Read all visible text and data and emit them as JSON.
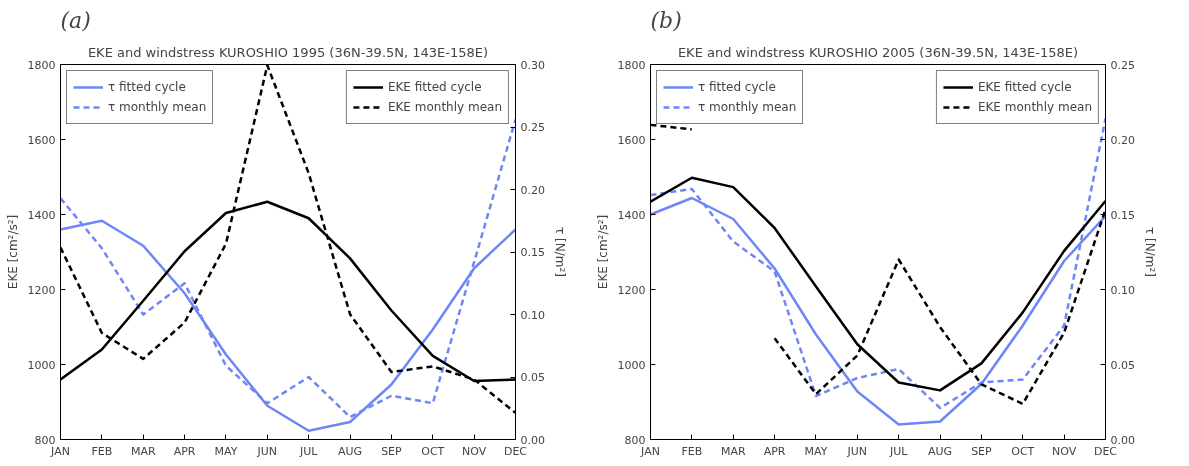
{
  "chart_data": [
    {
      "type": "line",
      "title": "EKE and windstress KUROSHIO 1995 (36N-39.5N, 143E-158E)",
      "annotations": [
        "(a)"
      ],
      "ylabel": "EKE [cm²/s²]",
      "y2label": "τ [N/m²]",
      "categories": [
        "JAN",
        "FEB",
        "MAR",
        "APR",
        "MAY",
        "JUN",
        "JUL",
        "AUG",
        "SEP",
        "OCT",
        "NOV",
        "DEC"
      ],
      "ylim": [
        800,
        1800
      ],
      "yticks": [
        800,
        1000,
        1200,
        1400,
        1600,
        1800
      ],
      "y2lim": [
        0,
        0.3
      ],
      "y2ticks": [
        {
          "value": 0,
          "label": "0.00"
        },
        {
          "value": 0.05,
          "label": "0.05"
        },
        {
          "value": 0.1,
          "label": "0.10"
        },
        {
          "value": 0.15,
          "label": "0.15"
        },
        {
          "value": 0.2,
          "label": "0.20"
        },
        {
          "value": 0.25,
          "label": "0.25"
        },
        {
          "value": 0.3,
          "label": "0.30"
        }
      ],
      "grid": false,
      "legend": "top",
      "marker": "none",
      "series": [
        {
          "name": "τ fitted cycle",
          "color": "#6f86f7",
          "axis": "y2",
          "line_style": "solid",
          "values": [
            0.168,
            0.175,
            0.155,
            0.117,
            0.068,
            0.027,
            0.007,
            0.014,
            0.044,
            0.088,
            0.137,
            0.168
          ]
        },
        {
          "name": "τ monthly mean",
          "color": "#6f86f7",
          "axis": "y2",
          "line_style": "dashed",
          "values": [
            0.193,
            0.153,
            0.1,
            0.125,
            0.059,
            0.029,
            0.05,
            0.018,
            0.035,
            0.029,
            0.142,
            0.256
          ]
        },
        {
          "name": "EKE fitted cycle",
          "color": "#000000",
          "line_style": "solid",
          "values": [
            960,
            1040,
            1170,
            1302,
            1404,
            1434,
            1390,
            1283,
            1144,
            1023,
            956,
            960
          ]
        },
        {
          "name": "EKE monthly mean",
          "color": "#000000",
          "line_style": "dashed",
          "values": [
            1312,
            1084,
            1015,
            1112,
            1322,
            1798,
            1510,
            1134,
            980,
            995,
            960,
            871
          ]
        }
      ]
    },
    {
      "type": "line",
      "title": "EKE and windstress KUROSHIO 2005 (36N-39.5N, 143E-158E)",
      "annotations": [
        "(b)"
      ],
      "ylabel": "EKE [cm²/s²]",
      "y2label": "τ [N/m²]",
      "categories": [
        "JAN",
        "FEB",
        "MAR",
        "APR",
        "MAY",
        "JUN",
        "JUL",
        "AUG",
        "SEP",
        "OCT",
        "NOV",
        "DEC"
      ],
      "ylim": [
        800,
        1800
      ],
      "yticks": [
        800,
        1000,
        1200,
        1400,
        1600,
        1800
      ],
      "y2lim": [
        0,
        0.25
      ],
      "y2ticks": [
        {
          "value": 0,
          "label": "0.00"
        },
        {
          "value": 0.05,
          "label": "0.05"
        },
        {
          "value": 0.1,
          "label": "0.10"
        },
        {
          "value": 0.15,
          "label": "0.15"
        },
        {
          "value": 0.2,
          "label": "0.20"
        },
        {
          "value": 0.25,
          "label": "0.25"
        }
      ],
      "grid": false,
      "legend": "top",
      "marker": "none",
      "series": [
        {
          "name": "τ fitted cycle",
          "color": "#6f86f7",
          "axis": "y2",
          "line_style": "solid",
          "values": [
            0.15,
            0.161,
            0.147,
            0.114,
            0.07,
            0.032,
            0.01,
            0.012,
            0.037,
            0.076,
            0.119,
            0.149
          ]
        },
        {
          "name": "τ monthly mean",
          "color": "#6f86f7",
          "axis": "y2",
          "line_style": "dashed",
          "values": [
            0.163,
            0.167,
            0.132,
            0.112,
            0.029,
            0.041,
            0.047,
            0.021,
            0.038,
            0.04,
            0.076,
            0.214
          ]
        },
        {
          "name": "EKE fitted cycle",
          "color": "#000000",
          "line_style": "solid",
          "values": [
            1434,
            1498,
            1473,
            1364,
            1208,
            1054,
            952,
            931,
            1003,
            1139,
            1303,
            1436
          ]
        },
        {
          "name": "EKE monthly mean",
          "color": "#000000",
          "line_style": "dashed",
          "values": [
            1639,
            1627,
            null,
            1070,
            921,
            1024,
            1280,
            1100,
            947,
            895,
            1085,
            1413
          ]
        }
      ]
    }
  ]
}
